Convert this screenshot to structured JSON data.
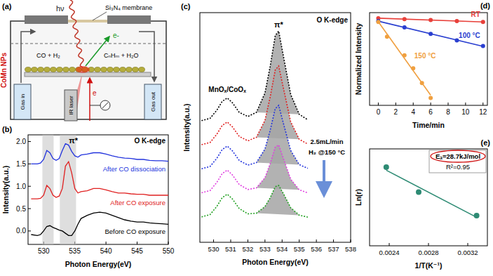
{
  "diagram": {
    "panel_label": "(a)",
    "hv": "hν",
    "membrane": "Si₃N₄ membrane",
    "electron_out": "e-",
    "reactants": "CO + H₂",
    "products": "CₙHₘ + H₂O",
    "nps": "CoMn NPs",
    "laser": "IR laser",
    "gas_in": "Gas in",
    "gas_out": "Gas out",
    "electron": "e"
  },
  "chart_data": [
    {
      "type": "line",
      "panel_label": "(b)",
      "title": "O K-edge",
      "x_label": "Photon Energy(eV)",
      "y_label": "Intensity(a.u.)",
      "annotation": "π*",
      "x": [
        528,
        529,
        529.5,
        530,
        530.5,
        531,
        531.5,
        532,
        532.5,
        533,
        533.5,
        534,
        534.5,
        535,
        535.5,
        536,
        537,
        538,
        539,
        540,
        541,
        542,
        543,
        544,
        545,
        546,
        547,
        548,
        549,
        550
      ],
      "series": [
        {
          "name": "Before CO exposure",
          "color": "#000000",
          "values": [
            -0.08,
            -0.1,
            -0.08,
            0.0,
            0.1,
            0.12,
            0.08,
            0.05,
            0.02,
            0.0,
            -0.05,
            -0.1,
            -0.1,
            0.0,
            0.15,
            0.28,
            0.35,
            0.4,
            0.42,
            0.4,
            0.35,
            0.3,
            0.25,
            0.22,
            0.2,
            0.2,
            0.18,
            0.17,
            0.16,
            0.15
          ]
        },
        {
          "name": "After CO exposure",
          "color": "#e02020",
          "values": [
            0.72,
            0.72,
            0.73,
            0.8,
            1.02,
            0.95,
            0.8,
            0.75,
            0.78,
            0.95,
            1.45,
            1.55,
            1.3,
            0.95,
            0.85,
            0.88,
            0.9,
            0.95,
            0.95,
            0.92,
            0.88,
            0.85,
            0.85,
            0.83,
            0.82,
            0.82,
            0.8,
            0.8,
            0.8,
            0.8
          ]
        },
        {
          "name": "After CO dissociation",
          "color": "#2233dd",
          "values": [
            1.5,
            1.5,
            1.52,
            1.6,
            1.8,
            1.75,
            1.62,
            1.58,
            1.62,
            1.8,
            1.95,
            1.92,
            1.78,
            1.68,
            1.65,
            1.7,
            1.72,
            1.75,
            1.75,
            1.72,
            1.68,
            1.65,
            1.63,
            1.62,
            1.6,
            1.6,
            1.58,
            1.57,
            1.57,
            1.56
          ]
        }
      ],
      "shaded_regions": [
        [
          529.8,
          531.6
        ],
        [
          532.6,
          535.2
        ]
      ],
      "xlim": [
        527.5,
        550
      ],
      "ylim": [
        -0.3,
        2.15
      ],
      "xticks": [
        530,
        535,
        540,
        545,
        550
      ],
      "yticks": [
        {
          "value": 0,
          "label": "0.0"
        },
        {
          "value": 0.5,
          "label": "0.5"
        },
        {
          "value": 1,
          "label": "1.0"
        },
        {
          "value": 1.5,
          "label": "1.5"
        },
        {
          "value": 2,
          "label": "2.0"
        }
      ]
    },
    {
      "type": "line",
      "panel_label": "(c)",
      "title": "O K-edge",
      "x_label": "Photon Energy(eV)",
      "y_label": "Intensity(a.u.)",
      "annotations": [
        "MnOₓ/CoOₓ",
        "π*"
      ],
      "arrow_label": [
        "2.5mL/min",
        "H₂ @150 °C"
      ],
      "x": [
        529.3,
        529.8,
        530.2,
        530.5,
        530.8,
        531.1,
        531.5,
        532,
        532.5,
        533,
        533.3,
        533.6,
        533.8,
        534.1,
        534.5,
        535,
        535.5
      ],
      "series": [
        {
          "color": "#000000",
          "line_style": "dotted",
          "values": [
            5.56,
            5.67,
            6.05,
            6.44,
            6.6,
            6.38,
            5.94,
            5.75,
            5.94,
            6.82,
            8.03,
            9.45,
            9.66,
            8.41,
            6.76,
            5.85,
            5.6
          ]
        },
        {
          "color": "#e02020",
          "line_style": "dotted",
          "values": [
            4.46,
            4.57,
            4.95,
            5.34,
            5.5,
            5.28,
            4.84,
            4.64,
            4.8,
            5.57,
            6.63,
            7.88,
            8.06,
            6.96,
            5.51,
            4.71,
            4.49
          ]
        },
        {
          "color": "#2233dd",
          "line_style": "dotted",
          "values": [
            3.36,
            3.47,
            3.85,
            4.24,
            4.4,
            4.18,
            3.74,
            3.53,
            3.64,
            4.26,
            5.11,
            6.11,
            6.26,
            5.37,
            4.2,
            3.55,
            3.38
          ]
        },
        {
          "color": "#e040e0",
          "line_style": "dotted",
          "values": [
            2.26,
            2.37,
            2.75,
            3.14,
            3.3,
            3.08,
            2.64,
            2.41,
            2.49,
            2.95,
            3.59,
            4.35,
            4.45,
            3.78,
            2.89,
            2.4,
            2.26
          ]
        },
        {
          "color": "#20a020",
          "line_style": "dotted",
          "values": [
            1.16,
            1.27,
            1.65,
            2.04,
            2.2,
            1.98,
            1.54,
            1.3,
            1.33,
            1.63,
            2.03,
            2.54,
            2.6,
            2.19,
            1.58,
            1.24,
            1.15
          ]
        }
      ],
      "shaded_regions": [
        [
          532.5,
          535
        ]
      ],
      "xlim": [
        529.2,
        538
      ],
      "ylim": [
        0,
        10.5
      ],
      "xticks": [
        530,
        531,
        532,
        533,
        534,
        535,
        536,
        537,
        538
      ],
      "tick_labels": "x"
    },
    {
      "type": "scatter",
      "panel_label": "(d)",
      "x_label": "Time/min",
      "y_label": "Normalized Intensity",
      "series": [
        {
          "name": "RT",
          "color": "#e8403a",
          "marker": "circle",
          "line_style": "solid",
          "x": [
            0,
            3,
            6,
            9,
            12
          ],
          "values": [
            1.0,
            0.995,
            0.99,
            0.985,
            0.98
          ]
        },
        {
          "name": "100 °C",
          "color": "#2a3fd0",
          "marker": "circle",
          "line_style": "solid",
          "x": [
            0,
            3,
            6,
            9,
            12
          ],
          "values": [
            0.985,
            0.95,
            0.915,
            0.88,
            0.85
          ]
        },
        {
          "name": "150 °C",
          "color": "#f0a040",
          "marker": "circle",
          "line_style": "solid",
          "x": [
            0,
            1,
            3,
            4,
            5,
            6
          ],
          "values": [
            0.98,
            0.9,
            0.8,
            0.73,
            0.65,
            0.57
          ]
        }
      ],
      "xlim": [
        -1,
        12.5
      ],
      "ylim": [
        0.53,
        1.03
      ],
      "xticks": [
        0,
        2,
        4,
        6,
        8,
        10,
        12
      ],
      "tick_labels": "x"
    },
    {
      "type": "scatter",
      "panel_label": "(e)",
      "x_label": "1/T(K⁻¹)",
      "y_label": "Ln(r)",
      "annotations": [
        "Eₐ=28.7kJ/mol",
        "R²=0.95"
      ],
      "x": [
        0.00237,
        0.0027,
        0.00329
      ],
      "values": [
        -1.5,
        -3.15,
        -4.7
      ],
      "color": "#2e8b74",
      "marker": "circle",
      "line_style": "solid",
      "xlim": [
        0.0022,
        0.0034
      ],
      "ylim": [
        -6.7,
        -0.3
      ],
      "xticks": [
        0.0024,
        0.0028,
        0.0032
      ],
      "tick_labels": "x"
    }
  ]
}
